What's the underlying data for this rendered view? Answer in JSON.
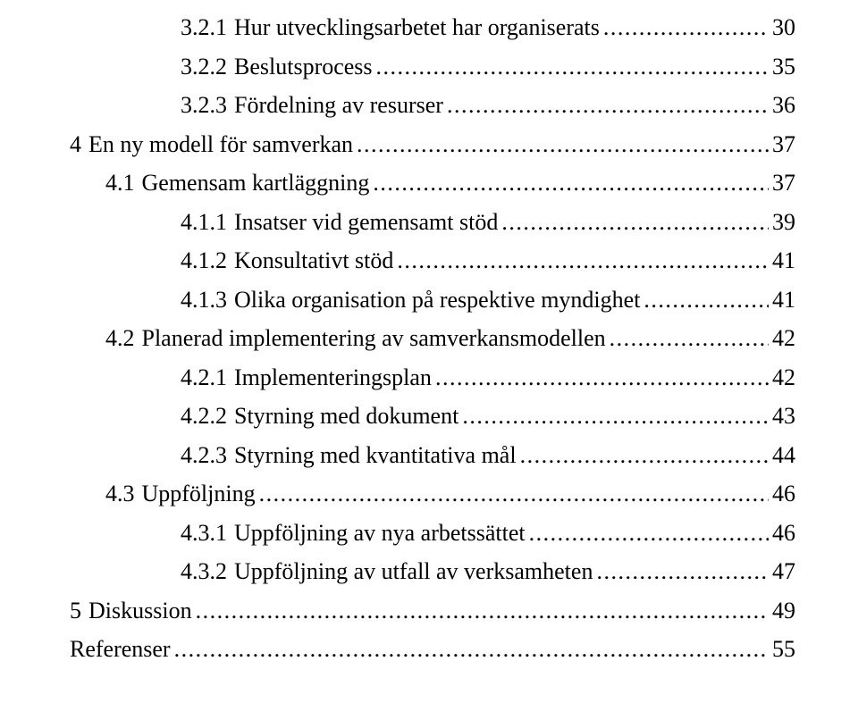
{
  "font_family": "Times New Roman",
  "font_size_pt": 20,
  "text_color": "#000000",
  "background_color": "#ffffff",
  "leader_char": ".",
  "entries": [
    {
      "indent": 3,
      "number": "3.2.1",
      "title": "Hur utvecklingsarbetet har organiserats",
      "page": "30"
    },
    {
      "indent": 3,
      "number": "3.2.2",
      "title": "Beslutsprocess",
      "page": "35"
    },
    {
      "indent": 3,
      "number": "3.2.3",
      "title": "Fördelning av resurser",
      "page": "36"
    },
    {
      "indent": 0,
      "number": "4",
      "title": "En ny modell för samverkan",
      "page": "37"
    },
    {
      "indent": 1,
      "number": "4.1",
      "title": "Gemensam kartläggning",
      "page": "37"
    },
    {
      "indent": 3,
      "number": "4.1.1",
      "title": "Insatser vid gemensamt stöd",
      "page": "39"
    },
    {
      "indent": 3,
      "number": "4.1.2",
      "title": "Konsultativt stöd",
      "page": "41"
    },
    {
      "indent": 3,
      "number": "4.1.3",
      "title": "Olika organisation på respektive myndighet",
      "page": "41"
    },
    {
      "indent": 1,
      "number": "4.2",
      "title": "Planerad implementering av samverkansmodellen",
      "page": "42"
    },
    {
      "indent": 3,
      "number": "4.2.1",
      "title": "Implementeringsplan",
      "page": "42"
    },
    {
      "indent": 3,
      "number": "4.2.2",
      "title": "Styrning med dokument",
      "page": "43"
    },
    {
      "indent": 3,
      "number": "4.2.3",
      "title": "Styrning med kvantitativa mål",
      "page": "44"
    },
    {
      "indent": 1,
      "number": "4.3",
      "title": "Uppföljning",
      "page": "46"
    },
    {
      "indent": 3,
      "number": "4.3.1",
      "title": "Uppföljning av nya arbetssättet",
      "page": "46"
    },
    {
      "indent": 3,
      "number": "4.3.2",
      "title": "Uppföljning av utfall av verksamheten",
      "page": "47"
    },
    {
      "indent": 0,
      "number": "5",
      "title": "Diskussion",
      "page": "49"
    },
    {
      "indent": 0,
      "number": "",
      "title": "Referenser",
      "page": "55"
    }
  ]
}
